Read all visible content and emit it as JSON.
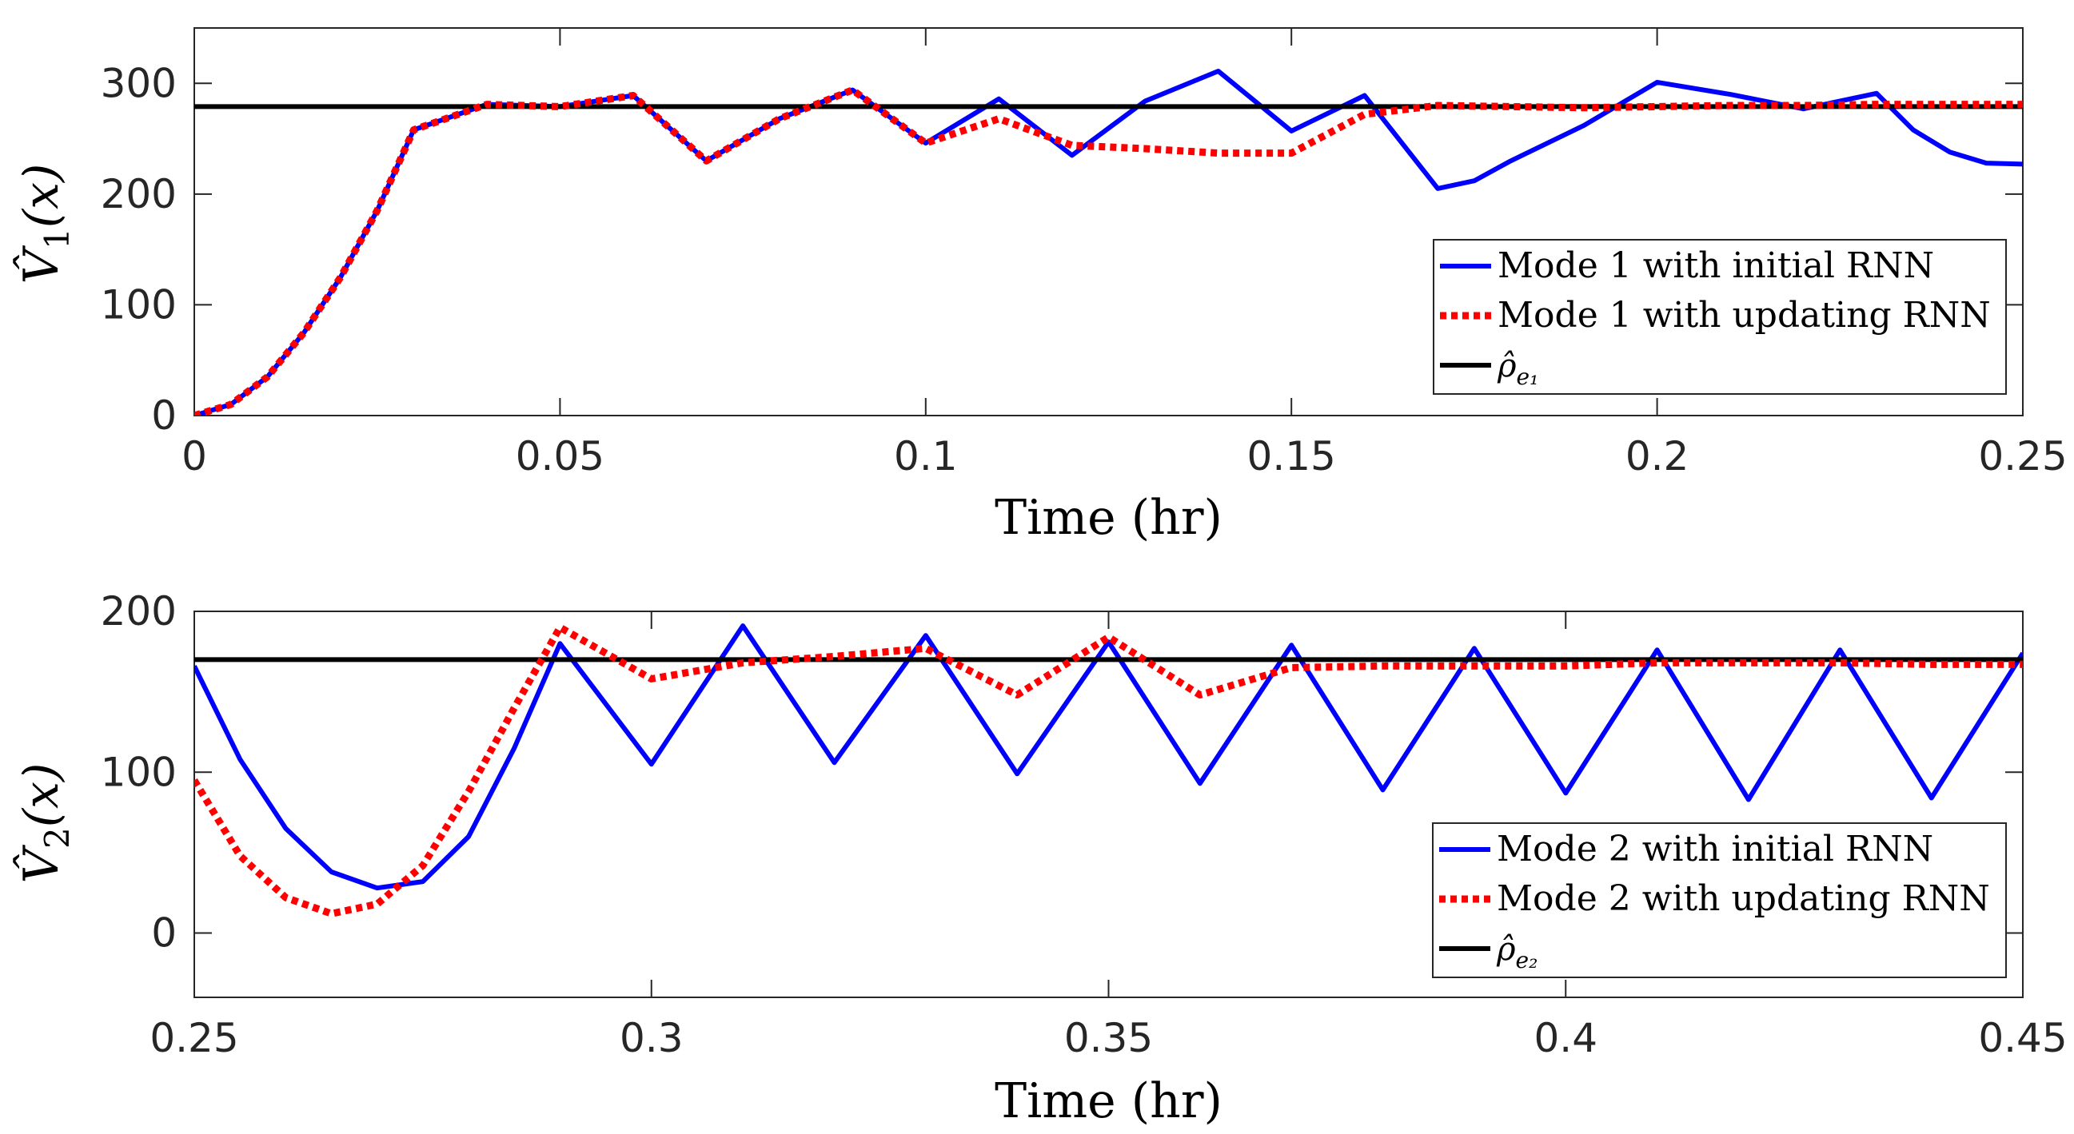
{
  "chart_data": [
    {
      "type": "line",
      "xlabel": "Time (hr)",
      "ylabel": "V̂",
      "ylabel_sub": "1",
      "ylabel_arg": "(x)",
      "xlim": [
        0,
        0.25
      ],
      "ylim": [
        0,
        350
      ],
      "xticks": [
        0,
        0.05,
        0.1,
        0.15,
        0.2,
        0.25
      ],
      "xtick_labels": [
        "0",
        "0.05",
        "0.1",
        "0.15",
        "0.2",
        "0.25"
      ],
      "yticks": [
        0,
        100,
        200,
        300
      ],
      "ytick_labels": [
        "0",
        "100",
        "200",
        "300"
      ],
      "legend_position": "bottom-right",
      "series": [
        {
          "name": "Mode 1 with initial RNN",
          "color": "#0000ff",
          "style": "solid",
          "points": [
            [
              0,
              0
            ],
            [
              0.005,
              10
            ],
            [
              0.01,
              35
            ],
            [
              0.015,
              75
            ],
            [
              0.02,
              125
            ],
            [
              0.025,
              185
            ],
            [
              0.03,
              258
            ],
            [
              0.04,
              281
            ],
            [
              0.05,
              279
            ],
            [
              0.06,
              289
            ],
            [
              0.07,
              230
            ],
            [
              0.08,
              268
            ],
            [
              0.09,
              294
            ],
            [
              0.1,
              246
            ],
            [
              0.11,
              286
            ],
            [
              0.12,
              235
            ],
            [
              0.13,
              284
            ],
            [
              0.14,
              311
            ],
            [
              0.15,
              257
            ],
            [
              0.16,
              289
            ],
            [
              0.17,
              205
            ],
            [
              0.175,
              212
            ],
            [
              0.18,
              230
            ],
            [
              0.19,
              262
            ],
            [
              0.2,
              301
            ],
            [
              0.21,
              290
            ],
            [
              0.22,
              277
            ],
            [
              0.23,
              291
            ],
            [
              0.235,
              258
            ],
            [
              0.24,
              238
            ],
            [
              0.245,
              228
            ],
            [
              0.25,
              227
            ]
          ]
        },
        {
          "name": "Mode 1 with updating RNN",
          "color": "#ff0000",
          "style": "dotted",
          "points": [
            [
              0,
              0
            ],
            [
              0.005,
              10
            ],
            [
              0.01,
              35
            ],
            [
              0.015,
              75
            ],
            [
              0.02,
              125
            ],
            [
              0.025,
              185
            ],
            [
              0.03,
              258
            ],
            [
              0.04,
              281
            ],
            [
              0.05,
              279
            ],
            [
              0.06,
              289
            ],
            [
              0.07,
              230
            ],
            [
              0.08,
              268
            ],
            [
              0.09,
              294
            ],
            [
              0.1,
              246
            ],
            [
              0.11,
              268
            ],
            [
              0.12,
              244
            ],
            [
              0.13,
              241
            ],
            [
              0.14,
              237
            ],
            [
              0.15,
              237
            ],
            [
              0.16,
              272
            ],
            [
              0.17,
              280
            ],
            [
              0.18,
              279
            ],
            [
              0.19,
              278
            ],
            [
              0.2,
              279
            ],
            [
              0.21,
              280
            ],
            [
              0.22,
              280
            ],
            [
              0.23,
              281
            ],
            [
              0.24,
              281
            ],
            [
              0.25,
              281
            ]
          ]
        },
        {
          "name": "ρ̂",
          "legend_sub": "e₁",
          "color": "#000000",
          "style": "solid",
          "points": [
            [
              0,
              279
            ],
            [
              0.25,
              279
            ]
          ]
        }
      ]
    },
    {
      "type": "line",
      "xlabel": "Time (hr)",
      "ylabel": "V̂",
      "ylabel_sub": "2",
      "ylabel_arg": "(x)",
      "xlim": [
        0.25,
        0.45
      ],
      "ylim": [
        -40,
        200
      ],
      "xticks": [
        0.25,
        0.3,
        0.35,
        0.4,
        0.45
      ],
      "xtick_labels": [
        "0.25",
        "0.3",
        "0.35",
        "0.4",
        "0.45"
      ],
      "yticks": [
        0,
        100,
        200
      ],
      "ytick_labels": [
        "0",
        "100",
        "200"
      ],
      "legend_position": "bottom-right",
      "series": [
        {
          "name": "Mode 2 with initial RNN",
          "color": "#0000ff",
          "style": "solid",
          "points": [
            [
              0.25,
              166
            ],
            [
              0.255,
              108
            ],
            [
              0.26,
              65
            ],
            [
              0.265,
              38
            ],
            [
              0.27,
              28
            ],
            [
              0.275,
              32
            ],
            [
              0.28,
              60
            ],
            [
              0.285,
              115
            ],
            [
              0.29,
              180
            ],
            [
              0.3,
              105
            ],
            [
              0.31,
              191
            ],
            [
              0.32,
              106
            ],
            [
              0.33,
              185
            ],
            [
              0.34,
              99
            ],
            [
              0.35,
              181
            ],
            [
              0.36,
              93
            ],
            [
              0.37,
              179
            ],
            [
              0.38,
              89
            ],
            [
              0.39,
              177
            ],
            [
              0.4,
              87
            ],
            [
              0.41,
              176
            ],
            [
              0.42,
              83
            ],
            [
              0.43,
              176
            ],
            [
              0.44,
              84
            ],
            [
              0.45,
              174
            ]
          ]
        },
        {
          "name": "Mode 2 with updating RNN",
          "color": "#ff0000",
          "style": "dotted",
          "points": [
            [
              0.25,
              95
            ],
            [
              0.255,
              48
            ],
            [
              0.26,
              22
            ],
            [
              0.265,
              12
            ],
            [
              0.27,
              18
            ],
            [
              0.275,
              42
            ],
            [
              0.28,
              88
            ],
            [
              0.285,
              140
            ],
            [
              0.29,
              190
            ],
            [
              0.3,
              158
            ],
            [
              0.31,
              168
            ],
            [
              0.32,
              172
            ],
            [
              0.33,
              177
            ],
            [
              0.34,
              148
            ],
            [
              0.35,
              184
            ],
            [
              0.36,
              148
            ],
            [
              0.37,
              165
            ],
            [
              0.38,
              166
            ],
            [
              0.39,
              166
            ],
            [
              0.4,
              166
            ],
            [
              0.41,
              168
            ],
            [
              0.42,
              168
            ],
            [
              0.43,
              168
            ],
            [
              0.44,
              167
            ],
            [
              0.45,
              167
            ]
          ]
        },
        {
          "name": "ρ̂",
          "legend_sub": "e₂",
          "color": "#000000",
          "style": "solid",
          "points": [
            [
              0.25,
              170
            ],
            [
              0.45,
              170
            ]
          ]
        }
      ]
    }
  ]
}
